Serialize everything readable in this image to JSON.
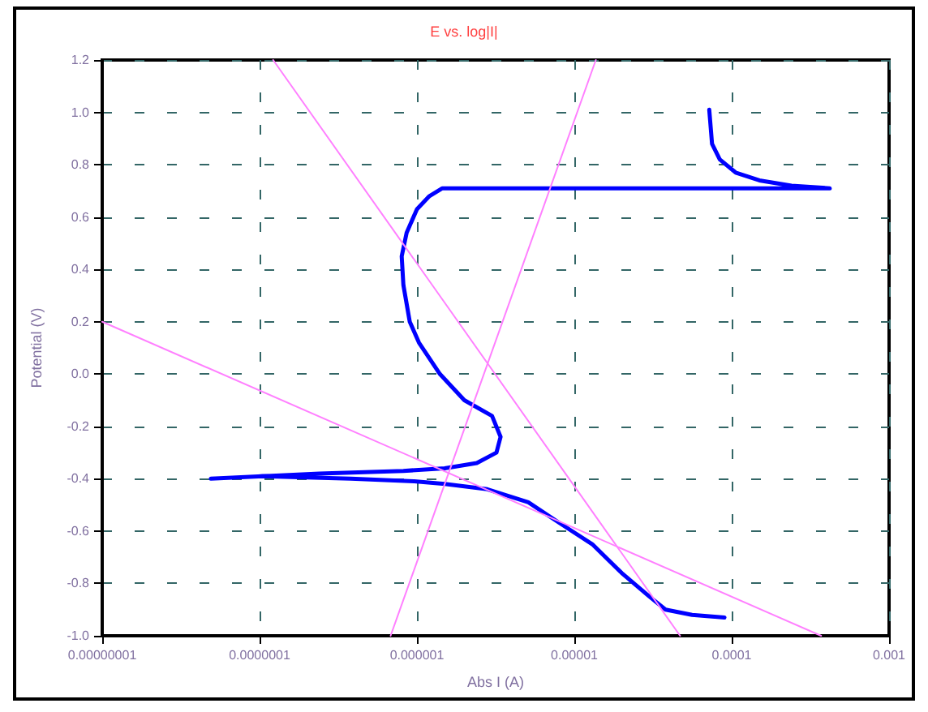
{
  "chart_data": {
    "type": "line",
    "title": "E vs. log|I|",
    "xlabel": "Abs I (A)",
    "ylabel": "Potential (V)",
    "log": "x",
    "grid": true,
    "marker": "none",
    "line_style": "solid",
    "xlim": [
      1e-08,
      0.001
    ],
    "xticks": [
      {
        "value": 1e-08,
        "label": "0.00000001"
      },
      {
        "value": 1e-07,
        "label": "0.0000001"
      },
      {
        "value": 1e-06,
        "label": "0.000001"
      },
      {
        "value": 1e-05,
        "label": "0.00001"
      },
      {
        "value": 0.0001,
        "label": "0.0001"
      },
      {
        "value": 0.001,
        "label": "0.001"
      }
    ],
    "ylim": [
      -1.0,
      1.2
    ],
    "yticks": [
      {
        "value": -1.0,
        "label": "-1.0"
      },
      {
        "value": -0.8,
        "label": "-0.8"
      },
      {
        "value": -0.6,
        "label": "-0.6"
      },
      {
        "value": -0.4,
        "label": "-0.4"
      },
      {
        "value": -0.2,
        "label": "-0.2"
      },
      {
        "value": 0,
        "label": "0.0"
      },
      {
        "value": 0.2,
        "label": "0.2"
      },
      {
        "value": 0.4,
        "label": "0.4"
      },
      {
        "value": 0.6,
        "label": "0.6"
      },
      {
        "value": 0.8,
        "label": "0.8"
      },
      {
        "value": 1.0,
        "label": "1.0"
      },
      {
        "value": 1.2,
        "label": "1.2"
      }
    ],
    "series": [
      {
        "color": "#0000ff",
        "x": [
          9e-05,
          5.6e-05,
          3.8e-05,
          3e-05,
          2e-05,
          1.3e-05,
          8.1e-06,
          5.1e-06,
          2.8e-06,
          1.5e-06,
          9.6e-07,
          3.8e-07,
          1.04e-07,
          4.9e-08,
          2.4e-07,
          8.2e-07,
          1.5e-06,
          2.4e-06,
          3.2e-06,
          3.4e-06,
          3e-06,
          2e-06,
          1.4e-06,
          1.03e-06,
          9e-07,
          8.2e-07,
          8e-07,
          8.6e-07,
          1e-06,
          1.2e-06,
          1.45e-06,
          0.00042,
          0.00024,
          0.00015,
          0.000106,
          8.4e-05,
          7.5e-05,
          7.2e-05
        ],
        "values": [
          -0.93,
          -0.92,
          -0.9,
          -0.85,
          -0.76,
          -0.65,
          -0.57,
          -0.49,
          -0.44,
          -0.42,
          -0.41,
          -0.4,
          -0.39,
          -0.4,
          -0.38,
          -0.37,
          -0.36,
          -0.34,
          -0.3,
          -0.24,
          -0.16,
          -0.1,
          0.0,
          0.12,
          0.2,
          0.34,
          0.45,
          0.54,
          0.63,
          0.68,
          0.71,
          0.71,
          0.72,
          0.74,
          0.77,
          0.82,
          0.88,
          1.01
        ]
      },
      {
        "color": "#ff80ff",
        "x": [
          1.22e-07,
          4.7e-05
        ],
        "values": [
          1.2,
          -1.0
        ]
      },
      {
        "color": "#ff80ff",
        "x": [
          6.8e-07,
          1.37e-05
        ],
        "values": [
          -1.0,
          1.2
        ]
      },
      {
        "color": "#ff80ff",
        "x": [
          1e-08,
          0.00037
        ],
        "values": [
          0.2,
          -1.0
        ]
      }
    ]
  }
}
